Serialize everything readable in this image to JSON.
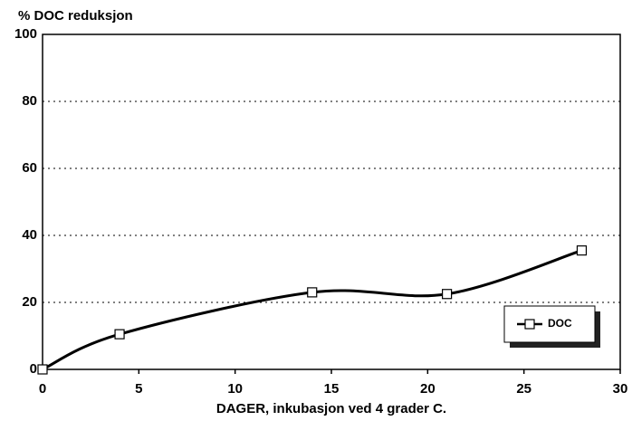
{
  "chart_data": {
    "type": "line",
    "title": "% DOC reduksjon",
    "x_label": "DAGER, inkubasjon ved 4 grader C.",
    "x": [
      0,
      4,
      14,
      21,
      28
    ],
    "series": [
      {
        "name": "DOC",
        "color": "#000000",
        "values": [
          0,
          10.5,
          23,
          22.5,
          35.5
        ]
      }
    ],
    "xlim": [
      0,
      30
    ],
    "xticks": [
      0,
      5,
      10,
      15,
      20,
      25,
      30
    ],
    "ylim": [
      0,
      100
    ],
    "yticks": [
      0,
      20,
      40,
      60,
      80,
      100
    ],
    "grid": true,
    "legend": "lower right"
  }
}
